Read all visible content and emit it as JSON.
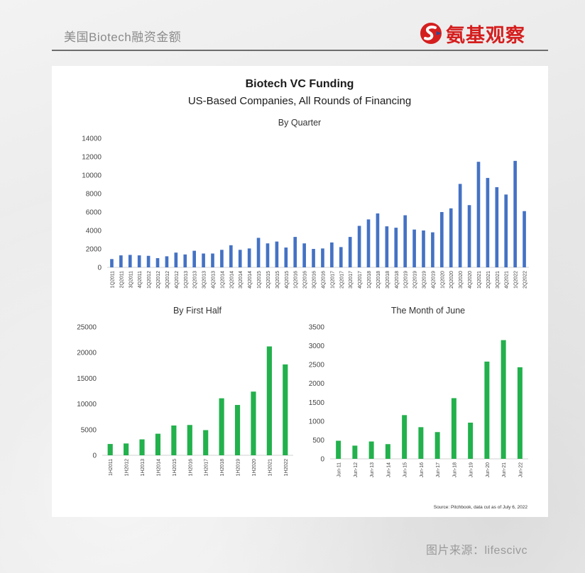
{
  "header": {
    "title": "美国Biotech融资金额",
    "brand_name": "氨基观察",
    "brand_icon": "stylized-s-icon",
    "brand_color": "#d51f1f"
  },
  "figure": {
    "title": "Biotech VC Funding",
    "subtitle": "US-Based Companies, All Rounds of Financing",
    "source": "Source: Pitchbook, data cut as of July 6, 2022"
  },
  "footer": {
    "credit": "图片来源：lifescivc"
  },
  "chart_data": [
    {
      "type": "bar",
      "title": "By Quarter",
      "color": "#4472c4",
      "ylim": [
        0,
        14000
      ],
      "yticks": [
        0,
        2000,
        4000,
        6000,
        8000,
        10000,
        12000,
        14000
      ],
      "categories": [
        "1Q2011",
        "2Q2011",
        "3Q2011",
        "4Q2011",
        "1Q2012",
        "2Q2012",
        "3Q2012",
        "4Q2012",
        "1Q2013",
        "2Q2013",
        "3Q2013",
        "4Q2013",
        "1Q2014",
        "2Q2014",
        "3Q2014",
        "4Q2014",
        "1Q2015",
        "2Q2015",
        "3Q2015",
        "4Q2015",
        "1Q2016",
        "2Q2016",
        "3Q2016",
        "4Q2016",
        "1Q2017",
        "2Q2017",
        "3Q2017",
        "4Q2017",
        "1Q2018",
        "2Q2018",
        "3Q2018",
        "4Q2018",
        "1Q2019",
        "2Q2019",
        "3Q2019",
        "4Q2019",
        "1Q2020",
        "2Q2020",
        "3Q2020",
        "4Q2020",
        "1Q2021",
        "2Q2021",
        "3Q2021",
        "4Q2021",
        "1Q2022",
        "2Q2022"
      ],
      "values": [
        900,
        1300,
        1350,
        1300,
        1250,
        1000,
        1200,
        1600,
        1400,
        1800,
        1500,
        1500,
        1900,
        2400,
        1900,
        2050,
        3200,
        2600,
        2800,
        2150,
        3300,
        2600,
        2000,
        2050,
        2700,
        2200,
        3300,
        4500,
        5200,
        5850,
        4450,
        4300,
        5650,
        4100,
        4000,
        3800,
        6000,
        6400,
        9050,
        6750,
        11450,
        9700,
        8700,
        7900,
        11550,
        6100
      ],
      "grid": false
    },
    {
      "type": "bar",
      "title": "By First Half",
      "color": "#22b14c",
      "ylim": [
        0,
        25000
      ],
      "yticks": [
        0,
        5000,
        10000,
        15000,
        20000,
        25000
      ],
      "categories": [
        "1H2011",
        "1H2012",
        "1H2013",
        "1H2014",
        "1H2015",
        "1H2016",
        "1H2017",
        "1H2018",
        "1H2019",
        "1H2020",
        "1H2021",
        "1H2022"
      ],
      "values": [
        2200,
        2300,
        3100,
        4200,
        5800,
        5900,
        4900,
        11100,
        9800,
        12400,
        21200,
        17700
      ],
      "grid": false
    },
    {
      "type": "bar",
      "title": "The Month of June",
      "color": "#22b14c",
      "ylim": [
        0,
        3500
      ],
      "yticks": [
        0,
        500,
        1000,
        1500,
        2000,
        2500,
        3000,
        3500
      ],
      "categories": [
        "Jun-11",
        "Jun-12",
        "Jun-13",
        "Jun-14",
        "Jun-15",
        "Jun-16",
        "Jun-17",
        "Jun-18",
        "Jun-19",
        "Jun-20",
        "Jun-21",
        "Jun-22"
      ],
      "values": [
        480,
        350,
        460,
        390,
        1160,
        840,
        710,
        1610,
        960,
        2580,
        3150,
        2430
      ],
      "grid": false
    }
  ]
}
